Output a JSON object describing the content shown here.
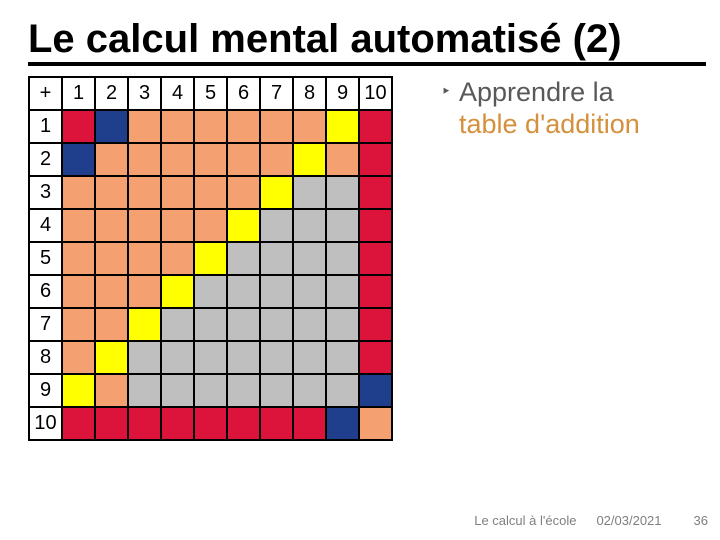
{
  "title": "Le calcul mental automatisé (2)",
  "bullet_glyph": "‣",
  "bullet_line1": "Apprendre la",
  "bullet_line2": "table d'addition",
  "footer": {
    "source": "Le calcul à l'école",
    "date": "02/03/2021",
    "page": "36"
  },
  "colors": {
    "red": "#dc143c",
    "blue": "#1f3e8b",
    "orange": "#f4a070",
    "yellow": "#ffff00",
    "gray": "#bfbfbf",
    "white": "#ffffff"
  },
  "table": {
    "corner": "+",
    "col_headers": [
      "1",
      "2",
      "3",
      "4",
      "5",
      "6",
      "7",
      "8",
      "9",
      "10"
    ],
    "row_headers": [
      "1",
      "2",
      "3",
      "4",
      "5",
      "6",
      "7",
      "8",
      "9",
      "10"
    ],
    "cells": [
      [
        "red",
        "blue",
        "orange",
        "orange",
        "orange",
        "orange",
        "orange",
        "orange",
        "yellow",
        "red"
      ],
      [
        "blue",
        "orange",
        "orange",
        "orange",
        "orange",
        "orange",
        "orange",
        "yellow",
        "orange",
        "red"
      ],
      [
        "orange",
        "orange",
        "orange",
        "orange",
        "orange",
        "orange",
        "yellow",
        "gray",
        "gray",
        "red"
      ],
      [
        "orange",
        "orange",
        "orange",
        "orange",
        "orange",
        "yellow",
        "gray",
        "gray",
        "gray",
        "red"
      ],
      [
        "orange",
        "orange",
        "orange",
        "orange",
        "yellow",
        "gray",
        "gray",
        "gray",
        "gray",
        "red"
      ],
      [
        "orange",
        "orange",
        "orange",
        "yellow",
        "gray",
        "gray",
        "gray",
        "gray",
        "gray",
        "red"
      ],
      [
        "orange",
        "orange",
        "yellow",
        "gray",
        "gray",
        "gray",
        "gray",
        "gray",
        "gray",
        "red"
      ],
      [
        "orange",
        "yellow",
        "gray",
        "gray",
        "gray",
        "gray",
        "gray",
        "gray",
        "gray",
        "red"
      ],
      [
        "yellow",
        "orange",
        "gray",
        "gray",
        "gray",
        "gray",
        "gray",
        "gray",
        "gray",
        "blue"
      ],
      [
        "red",
        "red",
        "red",
        "red",
        "red",
        "red",
        "red",
        "red",
        "blue",
        "orange"
      ]
    ]
  }
}
